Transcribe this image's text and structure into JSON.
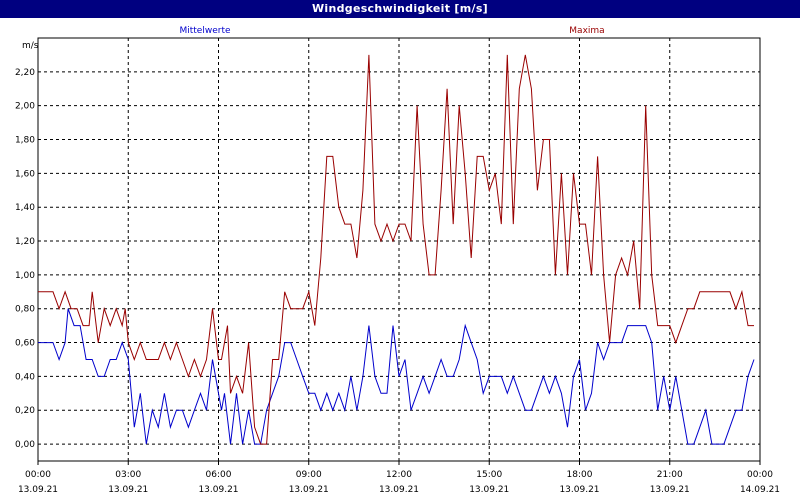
{
  "chart_data": {
    "type": "line",
    "title": "Windgeschwindigkeit [m/s]",
    "ylabel": "m/s",
    "xlabel": "",
    "ylim": [
      -0.1,
      2.4
    ],
    "xlim_hours": [
      0,
      24
    ],
    "grid": true,
    "y_ticks": [
      "0,00",
      "0,20",
      "0,40",
      "0,60",
      "0,80",
      "1,00",
      "1,20",
      "1,40",
      "1,60",
      "1,80",
      "2,00",
      "2,20"
    ],
    "x_ticks": [
      {
        "time": "00:00",
        "date": "13.09.21"
      },
      {
        "time": "03:00",
        "date": "13.09.21"
      },
      {
        "time": "06:00",
        "date": "13.09.21"
      },
      {
        "time": "09:00",
        "date": "13.09.21"
      },
      {
        "time": "12:00",
        "date": "13.09.21"
      },
      {
        "time": "15:00",
        "date": "13.09.21"
      },
      {
        "time": "18:00",
        "date": "13.09.21"
      },
      {
        "time": "21:00",
        "date": "13.09.21"
      },
      {
        "time": "00:00",
        "date": "14.09.21"
      }
    ],
    "series": [
      {
        "name": "Mittelwerte",
        "color": "#0000cc",
        "values": [
          [
            0.0,
            0.6
          ],
          [
            0.5,
            0.6
          ],
          [
            0.7,
            0.5
          ],
          [
            0.9,
            0.6
          ],
          [
            1.0,
            0.8
          ],
          [
            1.2,
            0.7
          ],
          [
            1.4,
            0.7
          ],
          [
            1.6,
            0.5
          ],
          [
            1.8,
            0.5
          ],
          [
            2.0,
            0.4
          ],
          [
            2.2,
            0.4
          ],
          [
            2.4,
            0.5
          ],
          [
            2.6,
            0.5
          ],
          [
            2.8,
            0.6
          ],
          [
            3.0,
            0.5
          ],
          [
            3.2,
            0.1
          ],
          [
            3.4,
            0.3
          ],
          [
            3.6,
            0.0
          ],
          [
            3.8,
            0.2
          ],
          [
            4.0,
            0.1
          ],
          [
            4.2,
            0.3
          ],
          [
            4.4,
            0.1
          ],
          [
            4.6,
            0.2
          ],
          [
            4.8,
            0.2
          ],
          [
            5.0,
            0.1
          ],
          [
            5.2,
            0.2
          ],
          [
            5.4,
            0.3
          ],
          [
            5.6,
            0.2
          ],
          [
            5.8,
            0.5
          ],
          [
            6.0,
            0.3
          ],
          [
            6.1,
            0.2
          ],
          [
            6.2,
            0.3
          ],
          [
            6.4,
            0.0
          ],
          [
            6.6,
            0.3
          ],
          [
            6.8,
            0.0
          ],
          [
            7.0,
            0.2
          ],
          [
            7.2,
            0.0
          ],
          [
            7.4,
            0.0
          ],
          [
            7.6,
            0.2
          ],
          [
            7.8,
            0.3
          ],
          [
            8.0,
            0.4
          ],
          [
            8.2,
            0.6
          ],
          [
            8.4,
            0.6
          ],
          [
            8.6,
            0.5
          ],
          [
            8.8,
            0.4
          ],
          [
            9.0,
            0.3
          ],
          [
            9.2,
            0.3
          ],
          [
            9.4,
            0.2
          ],
          [
            9.6,
            0.3
          ],
          [
            9.8,
            0.2
          ],
          [
            10.0,
            0.3
          ],
          [
            10.2,
            0.2
          ],
          [
            10.4,
            0.4
          ],
          [
            10.6,
            0.2
          ],
          [
            10.8,
            0.4
          ],
          [
            11.0,
            0.7
          ],
          [
            11.2,
            0.4
          ],
          [
            11.4,
            0.3
          ],
          [
            11.6,
            0.3
          ],
          [
            11.8,
            0.7
          ],
          [
            12.0,
            0.4
          ],
          [
            12.2,
            0.5
          ],
          [
            12.4,
            0.2
          ],
          [
            12.6,
            0.3
          ],
          [
            12.8,
            0.4
          ],
          [
            13.0,
            0.3
          ],
          [
            13.2,
            0.4
          ],
          [
            13.4,
            0.5
          ],
          [
            13.6,
            0.4
          ],
          [
            13.8,
            0.4
          ],
          [
            14.0,
            0.5
          ],
          [
            14.2,
            0.7
          ],
          [
            14.4,
            0.6
          ],
          [
            14.6,
            0.5
          ],
          [
            14.8,
            0.3
          ],
          [
            15.0,
            0.4
          ],
          [
            15.2,
            0.4
          ],
          [
            15.4,
            0.4
          ],
          [
            15.6,
            0.3
          ],
          [
            15.8,
            0.4
          ],
          [
            16.0,
            0.3
          ],
          [
            16.2,
            0.2
          ],
          [
            16.4,
            0.2
          ],
          [
            16.6,
            0.3
          ],
          [
            16.8,
            0.4
          ],
          [
            17.0,
            0.3
          ],
          [
            17.2,
            0.4
          ],
          [
            17.4,
            0.3
          ],
          [
            17.6,
            0.1
          ],
          [
            17.8,
            0.4
          ],
          [
            18.0,
            0.5
          ],
          [
            18.2,
            0.2
          ],
          [
            18.4,
            0.3
          ],
          [
            18.6,
            0.6
          ],
          [
            18.8,
            0.5
          ],
          [
            19.0,
            0.6
          ],
          [
            19.2,
            0.6
          ],
          [
            19.4,
            0.6
          ],
          [
            19.6,
            0.7
          ],
          [
            19.8,
            0.7
          ],
          [
            20.0,
            0.7
          ],
          [
            20.2,
            0.7
          ],
          [
            20.4,
            0.6
          ],
          [
            20.6,
            0.2
          ],
          [
            20.8,
            0.4
          ],
          [
            21.0,
            0.2
          ],
          [
            21.2,
            0.4
          ],
          [
            21.4,
            0.2
          ],
          [
            21.6,
            0.0
          ],
          [
            21.8,
            0.0
          ],
          [
            22.0,
            0.1
          ],
          [
            22.2,
            0.2
          ],
          [
            22.4,
            0.0
          ],
          [
            22.6,
            0.0
          ],
          [
            22.8,
            0.0
          ],
          [
            23.0,
            0.1
          ],
          [
            23.2,
            0.2
          ],
          [
            23.4,
            0.2
          ],
          [
            23.6,
            0.4
          ],
          [
            23.8,
            0.5
          ]
        ]
      },
      {
        "name": "Maxima",
        "color": "#990000",
        "values": [
          [
            0.0,
            0.9
          ],
          [
            0.5,
            0.9
          ],
          [
            0.7,
            0.8
          ],
          [
            0.9,
            0.9
          ],
          [
            1.1,
            0.8
          ],
          [
            1.3,
            0.8
          ],
          [
            1.5,
            0.7
          ],
          [
            1.7,
            0.7
          ],
          [
            1.8,
            0.9
          ],
          [
            2.0,
            0.6
          ],
          [
            2.2,
            0.8
          ],
          [
            2.4,
            0.7
          ],
          [
            2.6,
            0.8
          ],
          [
            2.8,
            0.7
          ],
          [
            2.9,
            0.8
          ],
          [
            3.0,
            0.6
          ],
          [
            3.2,
            0.5
          ],
          [
            3.4,
            0.6
          ],
          [
            3.6,
            0.5
          ],
          [
            3.8,
            0.5
          ],
          [
            4.0,
            0.5
          ],
          [
            4.2,
            0.6
          ],
          [
            4.4,
            0.5
          ],
          [
            4.6,
            0.6
          ],
          [
            4.8,
            0.5
          ],
          [
            5.0,
            0.4
          ],
          [
            5.2,
            0.5
          ],
          [
            5.4,
            0.4
          ],
          [
            5.6,
            0.5
          ],
          [
            5.8,
            0.8
          ],
          [
            6.0,
            0.5
          ],
          [
            6.1,
            0.5
          ],
          [
            6.3,
            0.7
          ],
          [
            6.4,
            0.3
          ],
          [
            6.6,
            0.4
          ],
          [
            6.8,
            0.3
          ],
          [
            7.0,
            0.6
          ],
          [
            7.2,
            0.1
          ],
          [
            7.4,
            0.0
          ],
          [
            7.6,
            0.0
          ],
          [
            7.8,
            0.5
          ],
          [
            8.0,
            0.5
          ],
          [
            8.2,
            0.9
          ],
          [
            8.4,
            0.8
          ],
          [
            8.6,
            0.8
          ],
          [
            8.8,
            0.8
          ],
          [
            9.0,
            0.9
          ],
          [
            9.2,
            0.7
          ],
          [
            9.4,
            1.1
          ],
          [
            9.6,
            1.7
          ],
          [
            9.8,
            1.7
          ],
          [
            10.0,
            1.4
          ],
          [
            10.2,
            1.3
          ],
          [
            10.4,
            1.3
          ],
          [
            10.6,
            1.1
          ],
          [
            10.8,
            1.5
          ],
          [
            11.0,
            2.3
          ],
          [
            11.2,
            1.3
          ],
          [
            11.4,
            1.2
          ],
          [
            11.6,
            1.3
          ],
          [
            11.8,
            1.2
          ],
          [
            12.0,
            1.3
          ],
          [
            12.2,
            1.3
          ],
          [
            12.4,
            1.2
          ],
          [
            12.6,
            2.0
          ],
          [
            12.8,
            1.3
          ],
          [
            13.0,
            1.0
          ],
          [
            13.2,
            1.0
          ],
          [
            13.4,
            1.5
          ],
          [
            13.6,
            2.1
          ],
          [
            13.8,
            1.3
          ],
          [
            14.0,
            2.0
          ],
          [
            14.2,
            1.6
          ],
          [
            14.4,
            1.1
          ],
          [
            14.6,
            1.7
          ],
          [
            14.8,
            1.7
          ],
          [
            15.0,
            1.5
          ],
          [
            15.2,
            1.6
          ],
          [
            15.4,
            1.3
          ],
          [
            15.6,
            2.3
          ],
          [
            15.8,
            1.3
          ],
          [
            16.0,
            2.1
          ],
          [
            16.2,
            2.3
          ],
          [
            16.4,
            2.1
          ],
          [
            16.6,
            1.5
          ],
          [
            16.8,
            1.8
          ],
          [
            17.0,
            1.8
          ],
          [
            17.2,
            1.0
          ],
          [
            17.4,
            1.6
          ],
          [
            17.6,
            1.0
          ],
          [
            17.8,
            1.6
          ],
          [
            18.0,
            1.3
          ],
          [
            18.2,
            1.3
          ],
          [
            18.4,
            1.0
          ],
          [
            18.6,
            1.7
          ],
          [
            18.8,
            1.0
          ],
          [
            19.0,
            0.6
          ],
          [
            19.2,
            1.0
          ],
          [
            19.4,
            1.1
          ],
          [
            19.6,
            1.0
          ],
          [
            19.8,
            1.2
          ],
          [
            20.0,
            0.8
          ],
          [
            20.2,
            2.0
          ],
          [
            20.4,
            1.0
          ],
          [
            20.6,
            0.7
          ],
          [
            20.8,
            0.7
          ],
          [
            21.0,
            0.7
          ],
          [
            21.2,
            0.6
          ],
          [
            21.4,
            0.7
          ],
          [
            21.6,
            0.8
          ],
          [
            21.8,
            0.8
          ],
          [
            22.0,
            0.9
          ],
          [
            22.2,
            0.9
          ],
          [
            22.4,
            0.9
          ],
          [
            22.6,
            0.9
          ],
          [
            22.8,
            0.9
          ],
          [
            23.0,
            0.9
          ],
          [
            23.2,
            0.8
          ],
          [
            23.4,
            0.9
          ],
          [
            23.6,
            0.7
          ],
          [
            23.8,
            0.7
          ]
        ]
      }
    ]
  }
}
